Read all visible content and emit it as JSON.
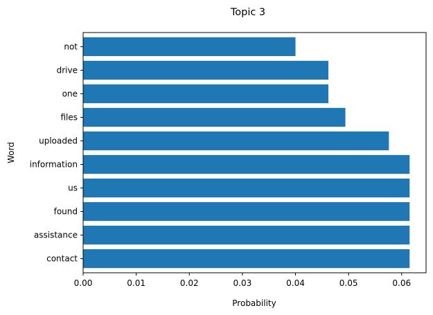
{
  "chart_data": {
    "type": "bar",
    "orientation": "horizontal",
    "title": "Topic 3",
    "xlabel": "Probability",
    "ylabel": "Word",
    "categories": [
      "contact",
      "assistance",
      "found",
      "us",
      "information",
      "uploaded",
      "files",
      "one",
      "drive",
      "not"
    ],
    "values": [
      0.0615,
      0.0615,
      0.0615,
      0.0615,
      0.0615,
      0.0576,
      0.0494,
      0.0462,
      0.0462,
      0.04
    ],
    "xlim": [
      0,
      0.0646
    ],
    "xticks": [
      "0.00",
      "0.01",
      "0.02",
      "0.03",
      "0.04",
      "0.05",
      "0.06"
    ],
    "bar_color": "#1f77b4",
    "grid": false,
    "legend": "none"
  }
}
